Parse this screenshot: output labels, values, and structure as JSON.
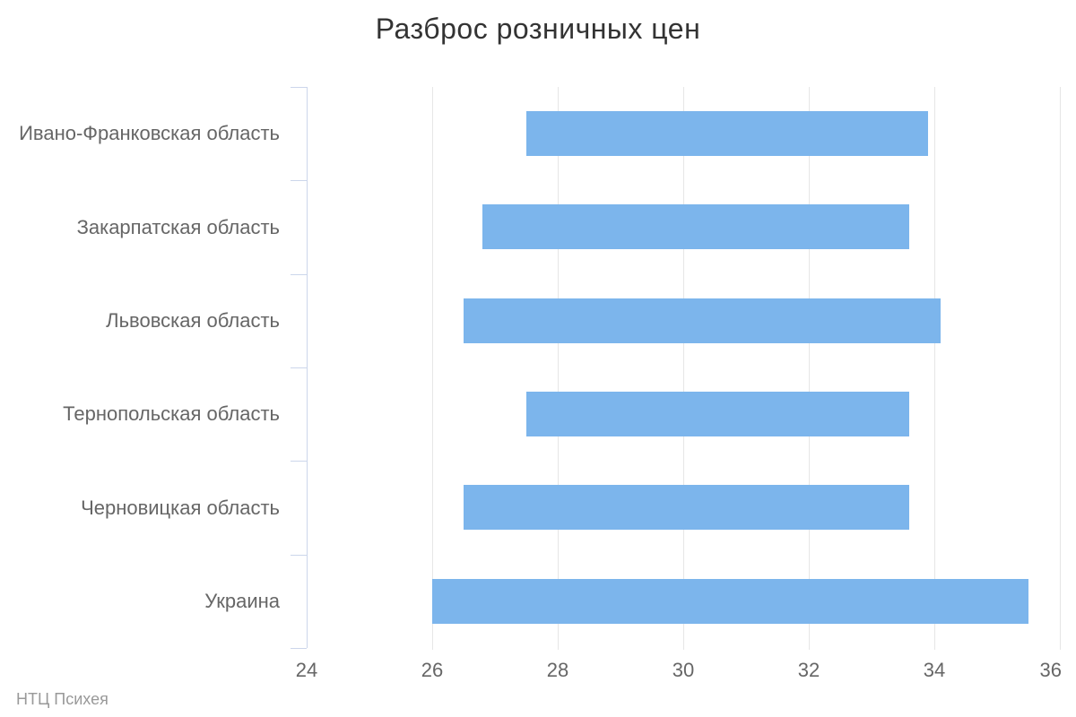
{
  "credits": "НТЦ Психея",
  "chart_data": {
    "type": "bar",
    "orientation": "horizontal",
    "range_bars": true,
    "title": "Разброс розничных цен",
    "categories": [
      "Ивано-Франковская область",
      "Закарпатская область",
      "Львовская область",
      "Тернопольская область",
      "Черновицкая область",
      "Украина"
    ],
    "low": [
      27.5,
      26.8,
      26.5,
      27.5,
      26.5,
      26.0
    ],
    "high": [
      33.9,
      33.6,
      34.1,
      33.6,
      33.6,
      35.5
    ],
    "xlim": [
      24,
      36
    ],
    "xticks": [
      24,
      26,
      28,
      30,
      32,
      34,
      36
    ],
    "grid": true,
    "legend": false,
    "colors": {
      "bar": "#7cb5ec",
      "gridline": "#e6e6e6",
      "axis": "#ccd6eb",
      "title": "#333333",
      "labels": "#666666",
      "credits": "#999999"
    }
  }
}
